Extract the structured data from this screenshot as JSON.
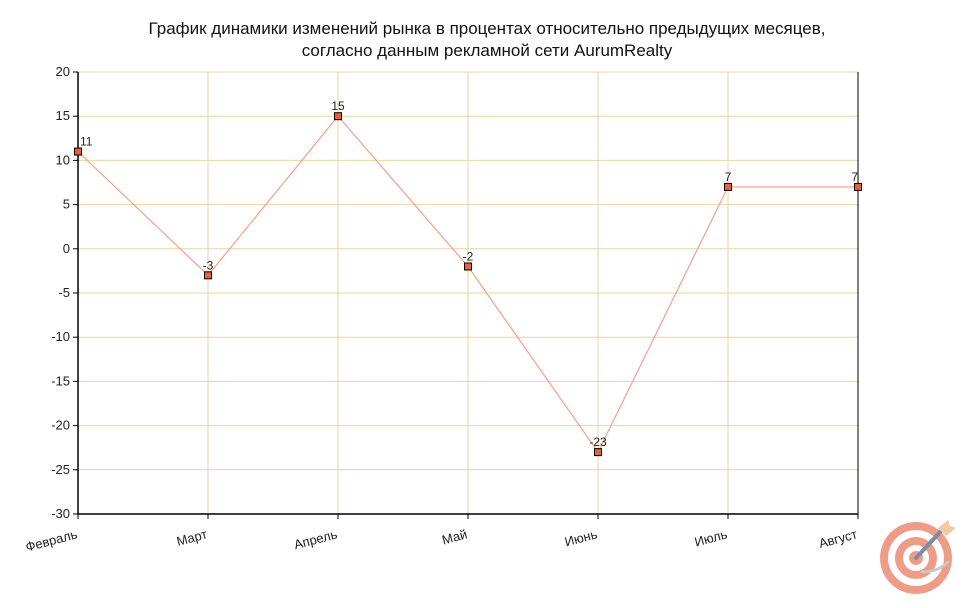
{
  "chart_data": {
    "type": "line",
    "title_line1": "График динамики изменений рынка в процентах относительно предыдущих месяцев,",
    "title_line2": "согласно данным рекламной сети AurumRealty",
    "categories": [
      "Февраль",
      "Март",
      "Апрель",
      "Май",
      "Июнь",
      "Июль",
      "Август"
    ],
    "values": [
      11,
      -3,
      15,
      -2,
      -23,
      7,
      7
    ],
    "data_labels": [
      "11",
      "-3",
      "15",
      "-2",
      "-23",
      "7",
      "7"
    ],
    "ylim": [
      -30,
      20
    ],
    "yticks": [
      "20",
      "15",
      "10",
      "5",
      "0",
      "-5",
      "-10",
      "-15",
      "-20",
      "-25",
      "-30"
    ],
    "grid": true,
    "colors": {
      "line": "#f4a08a",
      "marker_fill": "#e8603c",
      "marker_stroke": "#000000",
      "grid": "#e8d4a8",
      "axis": "#000000"
    }
  },
  "logo": {
    "icon": "target-dart-icon",
    "colors": {
      "ring": "#ee9c88",
      "dart": "#7d8ca3",
      "flight": "#f4c9a6"
    }
  }
}
